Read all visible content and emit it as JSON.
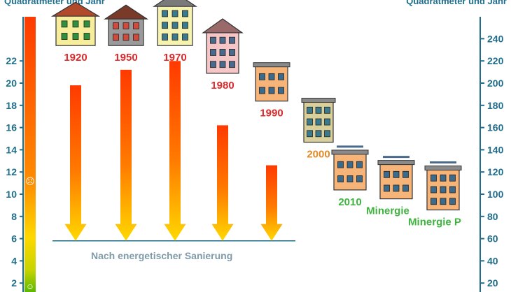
{
  "left_axis": {
    "title": "Quadratmeter und Jahr"
  },
  "right_axis": {
    "title": "Quadratmeter und Jahr"
  },
  "reference": {
    "label": "Nach energetischer Sanierung"
  },
  "colors": {
    "axis": "#1f6e8c",
    "year_red": "#e0282a",
    "year_orange": "#e08a2a",
    "year_green": "#3fb33f",
    "arrow_top": "#ff3500",
    "arrow_bottom": "#ffd600"
  },
  "chart_data": {
    "type": "bar",
    "left_axis": {
      "ticks": [
        2,
        4,
        6,
        8,
        10,
        12,
        14,
        16,
        18,
        20,
        22
      ]
    },
    "right_axis": {
      "ticks": [
        20,
        40,
        60,
        80,
        100,
        120,
        140,
        160,
        180,
        200,
        220,
        240
      ]
    },
    "ylim_left": [
      0,
      26.5
    ],
    "ylim_right": [
      0,
      265
    ],
    "reference_value": 5.8,
    "categories": [
      "1920",
      "1950",
      "1970",
      "1980",
      "1990",
      "2000",
      "2010",
      "Minergie",
      "Minergie P"
    ],
    "values": [
      22,
      22,
      22,
      19.5,
      17,
      13.3,
      9,
      8.2,
      7.2
    ],
    "arrow_tops": [
      19.8,
      21.2,
      22,
      16.2,
      12.6,
      null,
      null,
      null,
      null
    ],
    "label_colors": [
      "red",
      "red",
      "red",
      "red",
      "red",
      "orange",
      "green",
      "green",
      "green"
    ]
  }
}
